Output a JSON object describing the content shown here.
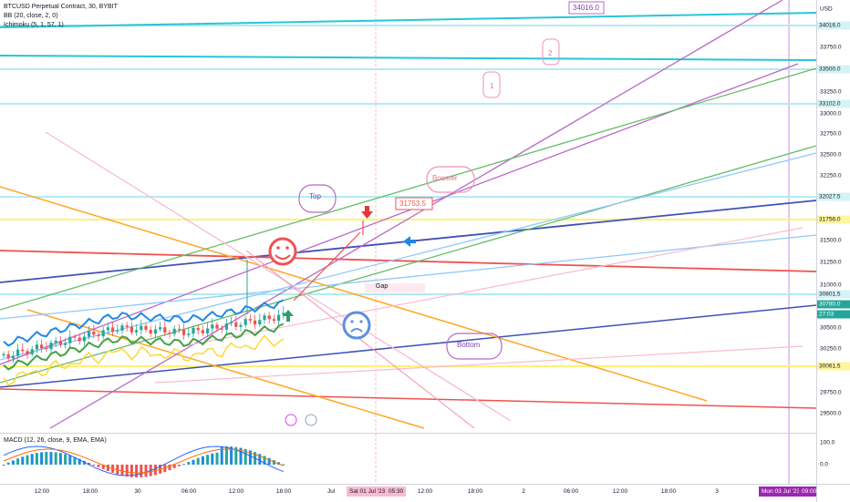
{
  "symbol_line": "BTCUSD Perpetual Contract, 30, BYBIT",
  "indicators": [
    "BB (20, close, 2, 0)",
    "Ichimoku (5, 1, 57, 1)"
  ],
  "macd_legend": "MACD (12, 26, close, 9, EMA, EMA)",
  "currency": "USD",
  "price_ticks": [
    "33750.0",
    "33250.0",
    "33000.0",
    "32750.0",
    "32500.0",
    "32250.0",
    "31500.0",
    "31250.0",
    "31000.0",
    "30500.0",
    "30250.0",
    "29750.0",
    "29500.0"
  ],
  "price_labels": [
    {
      "text": "34016.0",
      "bg": "#d4f3f7",
      "fg": "#131722"
    },
    {
      "text": "33500.0",
      "bg": "#d4f3f7",
      "fg": "#131722"
    },
    {
      "text": "33102.0",
      "bg": "#d4f3f7",
      "fg": "#131722"
    },
    {
      "text": "32027.5",
      "bg": "#d4f3f7",
      "fg": "#131722"
    },
    {
      "text": "31756.0",
      "bg": "#fff59d",
      "fg": "#131722"
    },
    {
      "text": "30801.5",
      "bg": "#d4f3f7",
      "fg": "#131722"
    },
    {
      "text": "30780.0",
      "bg": "#26a69a",
      "fg": "#ffffff"
    },
    {
      "text": "27:03",
      "bg": "#26a69a",
      "fg": "#ffffff"
    },
    {
      "text": "30061.5",
      "bg": "#fff59d",
      "fg": "#131722"
    }
  ],
  "macd_ticks": [
    "100.0",
    "0.0"
  ],
  "time_ticks": [
    "12:00",
    "18:00",
    "30",
    "06:00",
    "12:00",
    "18:00",
    "Jul",
    "12:00",
    "18:00",
    "2",
    "06:00",
    "12:00",
    "18:00",
    "3"
  ],
  "time_labels": [
    {
      "text": "Sat 01 Jul '23",
      "bg": "#f8bbd0",
      "fg": "#131722"
    },
    {
      "text": "05:30",
      "bg": "#f8bbd0",
      "fg": "#131722"
    },
    {
      "text": "Mon 03 Jul '23",
      "bg": "#9c27b0",
      "fg": "#ffffff"
    },
    {
      "text": "09:00",
      "bg": "#9c27b0",
      "fg": "#ffffff"
    }
  ],
  "callouts": {
    "top_label": "Top",
    "bottom_label": "Bottom",
    "booster_label": "Booster",
    "level_box": "34016.0",
    "target_box": "31753.5",
    "wave_1": "1",
    "wave_2": "2",
    "gap_label": "Gap"
  },
  "icons": [
    "smiley-face-icon",
    "sad-face-icon",
    "red-down-arrow-icon",
    "blue-left-arrow-icon",
    "green-up-arrow-icon",
    "flash-icon",
    "flag-icon"
  ],
  "colors": {
    "up": "#26a69a",
    "down": "#ef5350",
    "teal_line": "#26c6da",
    "yellow_line": "#fdd835",
    "purple": "#ba68c8",
    "green": "#66bb6a",
    "blue": "#5c8ee6",
    "navy": "#3f51b5",
    "red": "#ef5350",
    "orange": "#ffa726",
    "pink": "#f48fb1"
  }
}
